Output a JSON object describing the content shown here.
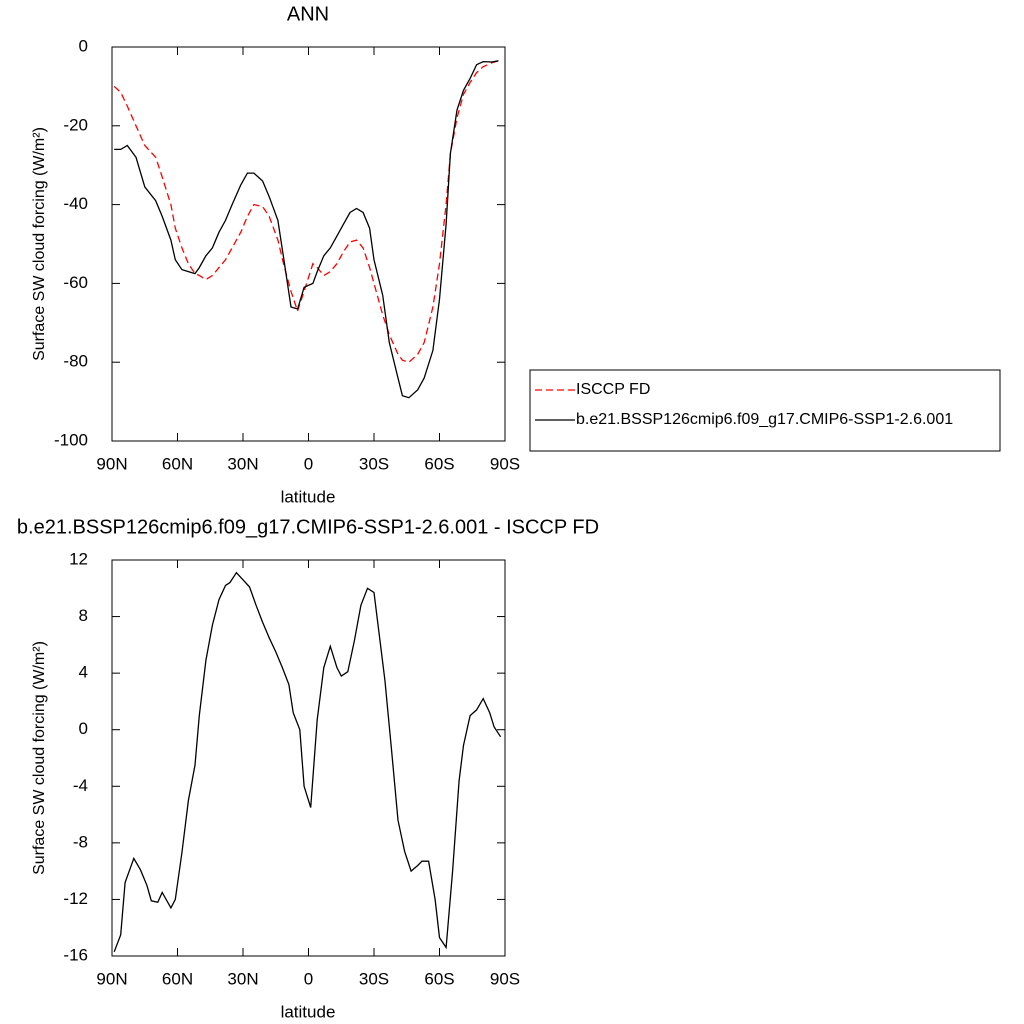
{
  "chart_data": [
    {
      "type": "line",
      "title": "ANN",
      "xlabel": "latitude",
      "ylabel": "Surface SW cloud forcing (W/m²)",
      "xlim": [
        90,
        -90
      ],
      "xticks": [
        {
          "value": 90,
          "label": "90N"
        },
        {
          "value": 60,
          "label": "60N"
        },
        {
          "value": 30,
          "label": "30N"
        },
        0,
        {
          "value": -30,
          "label": "30S"
        },
        {
          "value": -60,
          "label": "60S"
        },
        {
          "value": -90,
          "label": "90S"
        }
      ],
      "ylim": [
        -100,
        0
      ],
      "yticks": [
        0,
        -20,
        -40,
        -60,
        -80,
        -100
      ],
      "legend": "right",
      "x": [
        89,
        86,
        83,
        79,
        75,
        70,
        67,
        63,
        61,
        58,
        55,
        52,
        50,
        47,
        44,
        41,
        38,
        35,
        31,
        28,
        25,
        21,
        18,
        14,
        11,
        8,
        5,
        2,
        -2,
        -4,
        -7,
        -10,
        -13,
        -16,
        -19,
        -22,
        -25,
        -28,
        -30,
        -34,
        -37,
        -41,
        -43,
        -46,
        -50,
        -53,
        -57,
        -60,
        -63,
        -65,
        -68,
        -71,
        -74,
        -77,
        -80,
        -84,
        -87
      ],
      "series": [
        {
          "name": "ISCCP FD",
          "color": "#ff0000",
          "dashed": true,
          "values": [
            -10,
            -11.5,
            -15,
            -20,
            -25,
            -28,
            -33,
            -40,
            -46,
            -51,
            -55,
            -57.5,
            -58,
            -59,
            -58,
            -56,
            -54,
            -51,
            -47,
            -43,
            -40,
            -40.5,
            -43,
            -49,
            -56,
            -62,
            -67,
            -62,
            -55,
            -56,
            -58,
            -57,
            -55,
            -52,
            -49.5,
            -49,
            -51,
            -56,
            -60,
            -68,
            -73,
            -78,
            -79.5,
            -80,
            -78,
            -75,
            -66,
            -55,
            -40,
            -27,
            -18,
            -12,
            -9,
            -6.5,
            -5,
            -4,
            -3.5
          ]
        },
        {
          "name": "b.e21.BSSP126cmip6.f09_g17.CMIP6-SSP1-2.6.001",
          "color": "#000000",
          "dashed": false,
          "values": [
            -26,
            -26,
            -25,
            -28,
            -35.5,
            -39,
            -43,
            -49,
            -54,
            -56.5,
            -57,
            -57.5,
            -56,
            -53,
            -51,
            -47,
            -44,
            -40,
            -35,
            -32,
            -32,
            -34,
            -38,
            -44,
            -55,
            -66,
            -66.5,
            -61,
            -60,
            -57,
            -53,
            -51,
            -48,
            -45,
            -42,
            -41,
            -42,
            -46,
            -54,
            -63,
            -75,
            -84,
            -88.5,
            -89,
            -87,
            -84,
            -77,
            -64,
            -45,
            -27,
            -16,
            -11,
            -8,
            -4.5,
            -3.7,
            -3.8,
            -3.5
          ]
        }
      ]
    },
    {
      "type": "line",
      "title": "b.e21.BSSP126cmip6.f09_g17.CMIP6-SSP1-2.6.001 - ISCCP FD",
      "xlabel": "latitude",
      "ylabel": "Surface SW cloud forcing (W/m²)",
      "xlim": [
        90,
        -90
      ],
      "xticks": [
        {
          "value": 90,
          "label": "90N"
        },
        {
          "value": 60,
          "label": "60N"
        },
        {
          "value": 30,
          "label": "30N"
        },
        0,
        {
          "value": -30,
          "label": "30S"
        },
        {
          "value": -60,
          "label": "60S"
        },
        {
          "value": -90,
          "label": "90S"
        }
      ],
      "ylim": [
        -16,
        12
      ],
      "yticks": [
        12,
        8,
        4,
        0,
        -4,
        -8,
        -12,
        -16
      ],
      "x": [
        89,
        86,
        84,
        80,
        77,
        74,
        72,
        69,
        67,
        63,
        61,
        58,
        55,
        52,
        50,
        47,
        44,
        41,
        38,
        36,
        33,
        30,
        27,
        24,
        21,
        18,
        15,
        12,
        9,
        7,
        4,
        2,
        -1,
        -4,
        -7,
        -10,
        -13,
        -15,
        -18,
        -21,
        -24,
        -27,
        -30,
        -32,
        -35,
        -38,
        -41,
        -44,
        -47,
        -50,
        -52,
        -55,
        -58,
        -60,
        -63,
        -66,
        -69,
        -71,
        -74,
        -77,
        -80,
        -83,
        -85,
        -88
      ],
      "series": [
        {
          "color": "#000000",
          "dashed": false,
          "values": [
            -15.7,
            -14.5,
            -10.8,
            -9.1,
            -9.9,
            -11,
            -12.1,
            -12.2,
            -11.5,
            -12.6,
            -12,
            -8.7,
            -5,
            -2.5,
            1,
            4.9,
            7.4,
            9.2,
            10.2,
            10.4,
            11.1,
            10.6,
            10.1,
            8.8,
            7.6,
            6.5,
            5.5,
            4.4,
            3.2,
            1.2,
            0,
            -4,
            -5.5,
            0.7,
            4.4,
            5.9,
            4.4,
            3.8,
            4.1,
            6.3,
            8.8,
            10,
            9.7,
            7.2,
            3.5,
            -1.4,
            -6.4,
            -8.6,
            -10,
            -9.6,
            -9.3,
            -9.3,
            -12,
            -14.7,
            -15.4,
            -10,
            -3.6,
            -1.1,
            1,
            1.4,
            2.2,
            1.2,
            0.2,
            -0.5
          ]
        }
      ]
    }
  ]
}
